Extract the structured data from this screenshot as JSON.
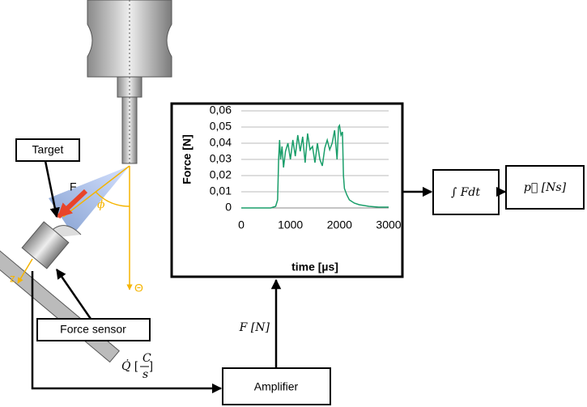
{
  "labels": {
    "target": "Target",
    "force_sensor": "Force sensor",
    "force_arrow": "F",
    "phi": "ϕ",
    "theta": "Θ",
    "z": "z",
    "signal_force": "F [N]",
    "amplifier": "Amplifier",
    "integral": "∫ Fdt",
    "momentum": "p⃗ [Ns]",
    "charge_rate": "Q̇",
    "charge_num": "C",
    "charge_den": "s"
  },
  "chart_data": {
    "type": "line",
    "xlabel": "time [µs]",
    "ylabel": "Force [N]",
    "x": [
      0,
      200,
      400,
      600,
      700,
      740,
      760,
      780,
      800,
      830,
      860,
      900,
      950,
      1000,
      1050,
      1100,
      1150,
      1200,
      1250,
      1300,
      1350,
      1400,
      1450,
      1500,
      1550,
      1600,
      1650,
      1700,
      1750,
      1800,
      1850,
      1900,
      1950,
      1980,
      2000,
      2030,
      2060,
      2080,
      2100,
      2150,
      2200,
      2300,
      2400,
      2600,
      2800,
      3000
    ],
    "series": [
      {
        "color": "#1a9e6a",
        "values": [
          0,
          0,
          0,
          0,
          0.001,
          0.005,
          0.03,
          0.042,
          0.03,
          0.038,
          0.025,
          0.035,
          0.04,
          0.03,
          0.042,
          0.032,
          0.045,
          0.035,
          0.044,
          0.028,
          0.046,
          0.036,
          0.038,
          0.028,
          0.04,
          0.03,
          0.026,
          0.037,
          0.042,
          0.036,
          0.04,
          0.048,
          0.03,
          0.05,
          0.051,
          0.045,
          0.047,
          0.02,
          0.012,
          0.008,
          0.005,
          0.003,
          0.002,
          0.001,
          0.0005,
          0.0005
        ]
      }
    ],
    "xlim": [
      0,
      3000
    ],
    "xticks": [
      0,
      1000,
      2000,
      3000
    ],
    "ylim": [
      0,
      0.06
    ],
    "yticks": [
      0,
      {
        "value": 0.01,
        "label": "0,01"
      },
      {
        "value": 0.02,
        "label": "0,02"
      },
      {
        "value": 0.03,
        "label": "0,03"
      },
      {
        "value": 0.04,
        "label": "0,04"
      },
      {
        "value": 0.05,
        "label": "0,05"
      },
      {
        "value": 0.06,
        "label": "0,06"
      }
    ],
    "grid": true
  }
}
